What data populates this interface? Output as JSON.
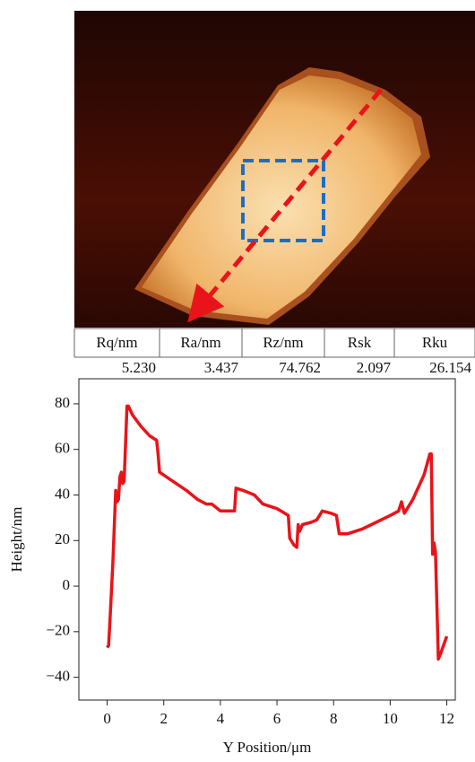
{
  "table": {
    "header": [
      "Rq/nm",
      "Ra/nm",
      "Rz/nm",
      "Rsk",
      "Rku"
    ],
    "rows": [
      [
        "5.230",
        "3.437",
        "74.762",
        "2.097",
        "26.154"
      ]
    ]
  },
  "chart_data": {
    "type": "line",
    "x_label": "Y Position/μm",
    "y_label": "Height/nm",
    "color": "#e8141a",
    "x": [
      0,
      0.05,
      0.1,
      0.2,
      0.3,
      0.35,
      0.4,
      0.45,
      0.5,
      0.55,
      0.6,
      0.7,
      0.75,
      0.9,
      1.2,
      1.5,
      1.75,
      1.8,
      1.85,
      2.2,
      2.8,
      3.2,
      3.5,
      3.7,
      4,
      4.5,
      4.55,
      4.8,
      5.2,
      5.5,
      6,
      6.4,
      6.45,
      6.6,
      6.7,
      6.75,
      6.8,
      6.9,
      7.2,
      7.4,
      7.6,
      7.9,
      8.1,
      8.2,
      8.5,
      9,
      9.5,
      10,
      10.3,
      10.4,
      10.5,
      10.8,
      11.2,
      11.4,
      11.45,
      11.5,
      11.55,
      11.6,
      11.7,
      11.8,
      12
    ],
    "values": [
      -27,
      -26,
      -15,
      10,
      42,
      37,
      38,
      48,
      50,
      45,
      46,
      79,
      79,
      75,
      70,
      66,
      64,
      58,
      50,
      47,
      42,
      38,
      36,
      36,
      33,
      33,
      43,
      42,
      40,
      36,
      34,
      31,
      21,
      18,
      17,
      27,
      24,
      27,
      28,
      29,
      33,
      32,
      31,
      23,
      23,
      25,
      28,
      31,
      33,
      37,
      32,
      38,
      49,
      58,
      58,
      14,
      19,
      15,
      -32,
      -29,
      -22
    ],
    "xlim": [
      -1,
      12.3
    ],
    "ylim": [
      -50,
      91
    ],
    "xticks": [
      0,
      2,
      4,
      6,
      8,
      10,
      12
    ],
    "yticks": [
      {
        "value": -40,
        "label": "−40"
      },
      {
        "value": -20,
        "label": "−20"
      },
      0,
      20,
      40,
      60,
      80
    ]
  }
}
